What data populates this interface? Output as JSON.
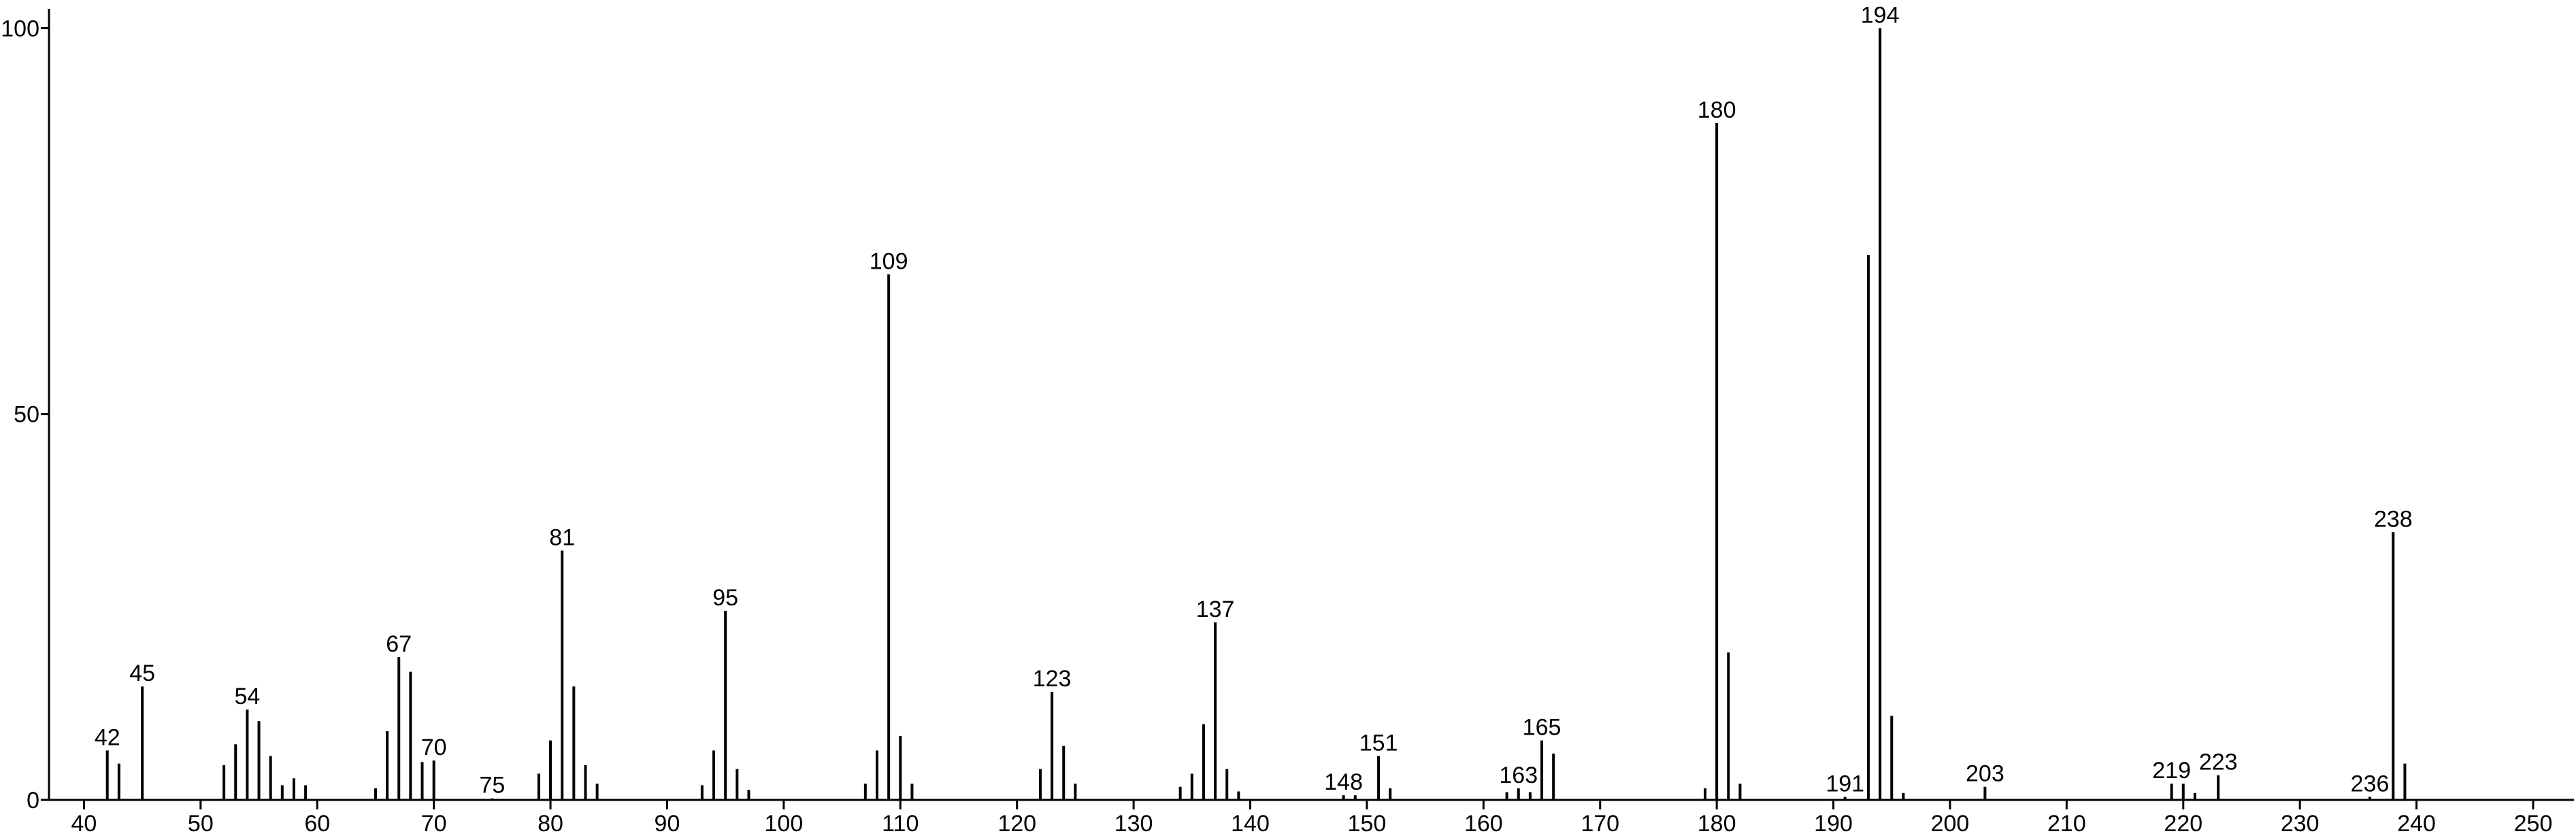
{
  "chart_data": {
    "type": "bar",
    "color": "#000000",
    "x": [
      42,
      43,
      45,
      52,
      53,
      54,
      55,
      56,
      57,
      58,
      59,
      65,
      66,
      67,
      68,
      69,
      70,
      75,
      79,
      80,
      81,
      82,
      83,
      84,
      93,
      94,
      95,
      96,
      97,
      107,
      108,
      109,
      110,
      111,
      122,
      123,
      124,
      125,
      134,
      135,
      136,
      137,
      138,
      139,
      148,
      149,
      151,
      152,
      162,
      163,
      164,
      165,
      166,
      179,
      180,
      181,
      182,
      191,
      193,
      194,
      195,
      196,
      203,
      219,
      220,
      221,
      223,
      236,
      238,
      239
    ],
    "values": [
      6.4,
      4.7,
      14.7,
      4.5,
      7.2,
      11.7,
      10.2,
      5.7,
      1.9,
      2.8,
      1.9,
      1.5,
      8.9,
      18.5,
      16.6,
      4.9,
      5.1,
      0.2,
      3.4,
      7.7,
      32.3,
      14.7,
      4.5,
      2.1,
      1.9,
      6.4,
      24.5,
      4,
      1.3,
      2.1,
      6.4,
      68.1,
      8.3,
      2.1,
      4,
      14,
      7,
      2.1,
      1.7,
      3.4,
      9.8,
      23,
      4,
      1.1,
      0.6,
      0.6,
      5.7,
      1.5,
      1,
      1.5,
      1,
      7.7,
      6,
      1.5,
      87.7,
      19.1,
      2.1,
      0.4,
      70.6,
      100,
      10.9,
      0.9,
      1.7,
      2.1,
      2.1,
      0.9,
      3.2,
      0.4,
      34.7,
      4.7
    ],
    "labeled": [
      true,
      false,
      true,
      false,
      false,
      true,
      false,
      false,
      false,
      false,
      false,
      false,
      false,
      true,
      false,
      false,
      true,
      true,
      false,
      false,
      true,
      false,
      false,
      false,
      false,
      false,
      true,
      false,
      false,
      false,
      false,
      true,
      false,
      false,
      false,
      true,
      false,
      false,
      false,
      false,
      false,
      true,
      false,
      false,
      true,
      false,
      true,
      false,
      false,
      true,
      false,
      true,
      false,
      false,
      true,
      false,
      false,
      true,
      false,
      true,
      false,
      false,
      true,
      true,
      false,
      false,
      true,
      true,
      true,
      false
    ],
    "xlim": [
      37,
      253.5
    ],
    "ylim": [
      0,
      102.5
    ],
    "xticks": [
      40,
      50,
      60,
      70,
      80,
      90,
      100,
      110,
      120,
      130,
      140,
      150,
      160,
      170,
      180,
      190,
      200,
      210,
      220,
      230,
      240,
      250
    ],
    "yticks": [
      0,
      50,
      100
    ]
  }
}
